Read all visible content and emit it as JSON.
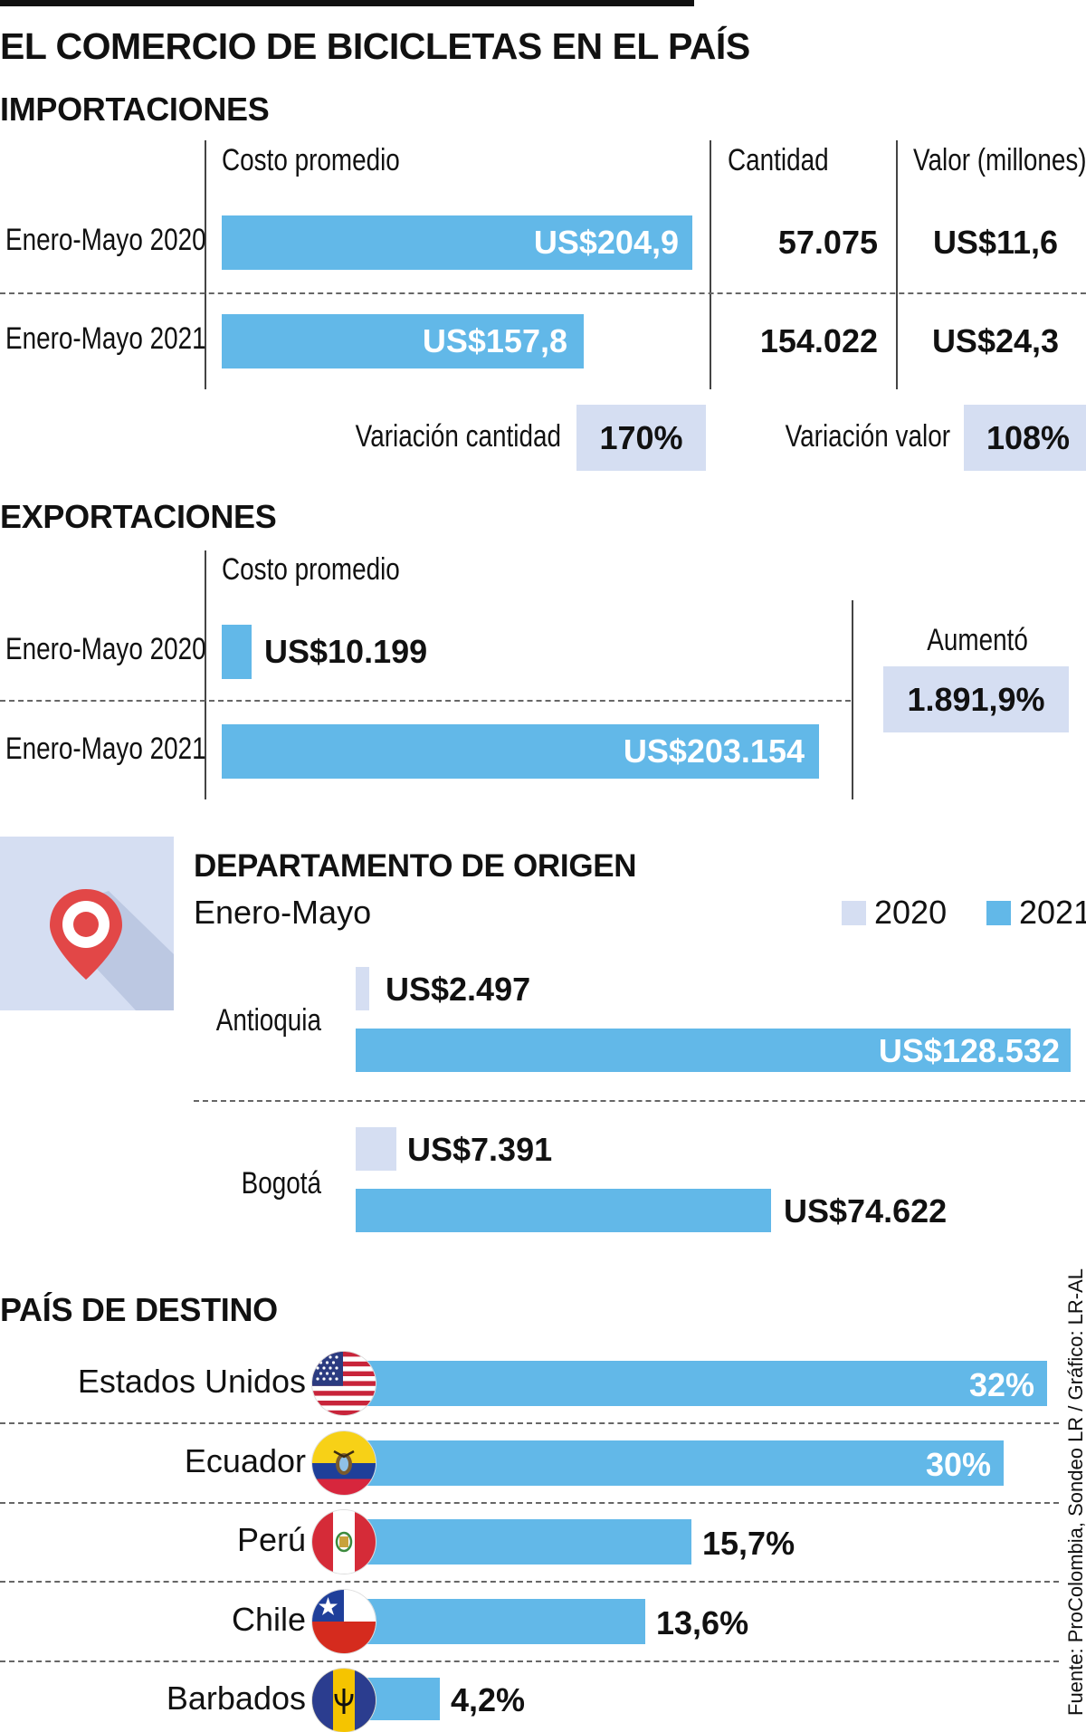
{
  "title": "EL COMERCIO DE BICICLETAS EN EL PAÍS",
  "imports": {
    "heading": "IMPORTACIONES",
    "col_cost": "Costo promedio",
    "col_qty": "Cantidad",
    "col_value": "Valor (millones)",
    "rows": [
      {
        "label": "Enero-Mayo 2020",
        "cost_label": "US$204,9",
        "qty": "57.075",
        "value": "US$11,6"
      },
      {
        "label": "Enero-Mayo 2021",
        "cost_label": "US$157,8",
        "qty": "154.022",
        "value": "US$24,3"
      }
    ],
    "var_qty_label": "Variación cantidad",
    "var_qty": "170%",
    "var_value_label": "Variación valor",
    "var_value": "108%"
  },
  "exports": {
    "heading": "EXPORTACIONES",
    "col_cost": "Costo promedio",
    "rows": [
      {
        "label": "Enero-Mayo 2020",
        "cost_label": "US$10.199"
      },
      {
        "label": "Enero-Mayo 2021",
        "cost_label": "US$203.154"
      }
    ],
    "increase_label": "Aumentó",
    "increase": "1.891,9%"
  },
  "origin": {
    "heading": "DEPARTAMENTO DE ORIGEN",
    "subheading": "Enero-Mayo",
    "legend_2020": "2020",
    "legend_2021": "2021",
    "rows": [
      {
        "label": "Antioquia",
        "v2020": "US$2.497",
        "v2021": "US$128.532"
      },
      {
        "label": "Bogotá",
        "v2020": "US$7.391",
        "v2021": "US$74.622"
      }
    ]
  },
  "destination": {
    "heading": "PAÍS DE DESTINO",
    "rows": [
      {
        "label": "Estados Unidos",
        "value_label": "32%",
        "flag": "usa-flag-icon"
      },
      {
        "label": "Ecuador",
        "value_label": "30%",
        "flag": "ecuador-flag-icon"
      },
      {
        "label": "Perú",
        "value_label": "15,7%",
        "flag": "peru-flag-icon"
      },
      {
        "label": "Chile",
        "value_label": "13,6%",
        "flag": "chile-flag-icon"
      },
      {
        "label": "Barbados",
        "value_label": "4,2%",
        "flag": "barbados-flag-icon"
      }
    ]
  },
  "source": "Fuente: ProColombia, Sondeo LR / Gráfico: LR-AL",
  "colors": {
    "bar": "#62b8e8",
    "light": "#d5def2"
  },
  "chart_data": [
    {
      "type": "bar",
      "title": "IMPORTACIONES",
      "xlabel": "",
      "ylabel": "Costo promedio",
      "categories": [
        "Enero-Mayo 2020",
        "Enero-Mayo 2021"
      ],
      "values": [
        204.9,
        157.8
      ],
      "extra": {
        "Cantidad": [
          57075,
          154022
        ],
        "Valor (millones)": [
          11.6,
          24.3
        ]
      }
    },
    {
      "type": "bar",
      "title": "EXPORTACIONES",
      "xlabel": "",
      "ylabel": "Costo promedio",
      "categories": [
        "Enero-Mayo 2020",
        "Enero-Mayo 2021"
      ],
      "values": [
        10199,
        203154
      ]
    },
    {
      "type": "bar",
      "title": "DEPARTAMENTO DE ORIGEN",
      "xlabel": "",
      "ylabel": "",
      "categories": [
        "Antioquia",
        "Bogotá"
      ],
      "series": [
        {
          "name": "2020",
          "values": [
            2497,
            7391
          ]
        },
        {
          "name": "2021",
          "values": [
            128532,
            74622
          ]
        }
      ]
    },
    {
      "type": "bar",
      "title": "PAÍS DE DESTINO",
      "xlabel": "",
      "ylabel": "",
      "categories": [
        "Estados Unidos",
        "Ecuador",
        "Perú",
        "Chile",
        "Barbados"
      ],
      "values": [
        32,
        30,
        15.7,
        13.6,
        4.2
      ]
    }
  ]
}
